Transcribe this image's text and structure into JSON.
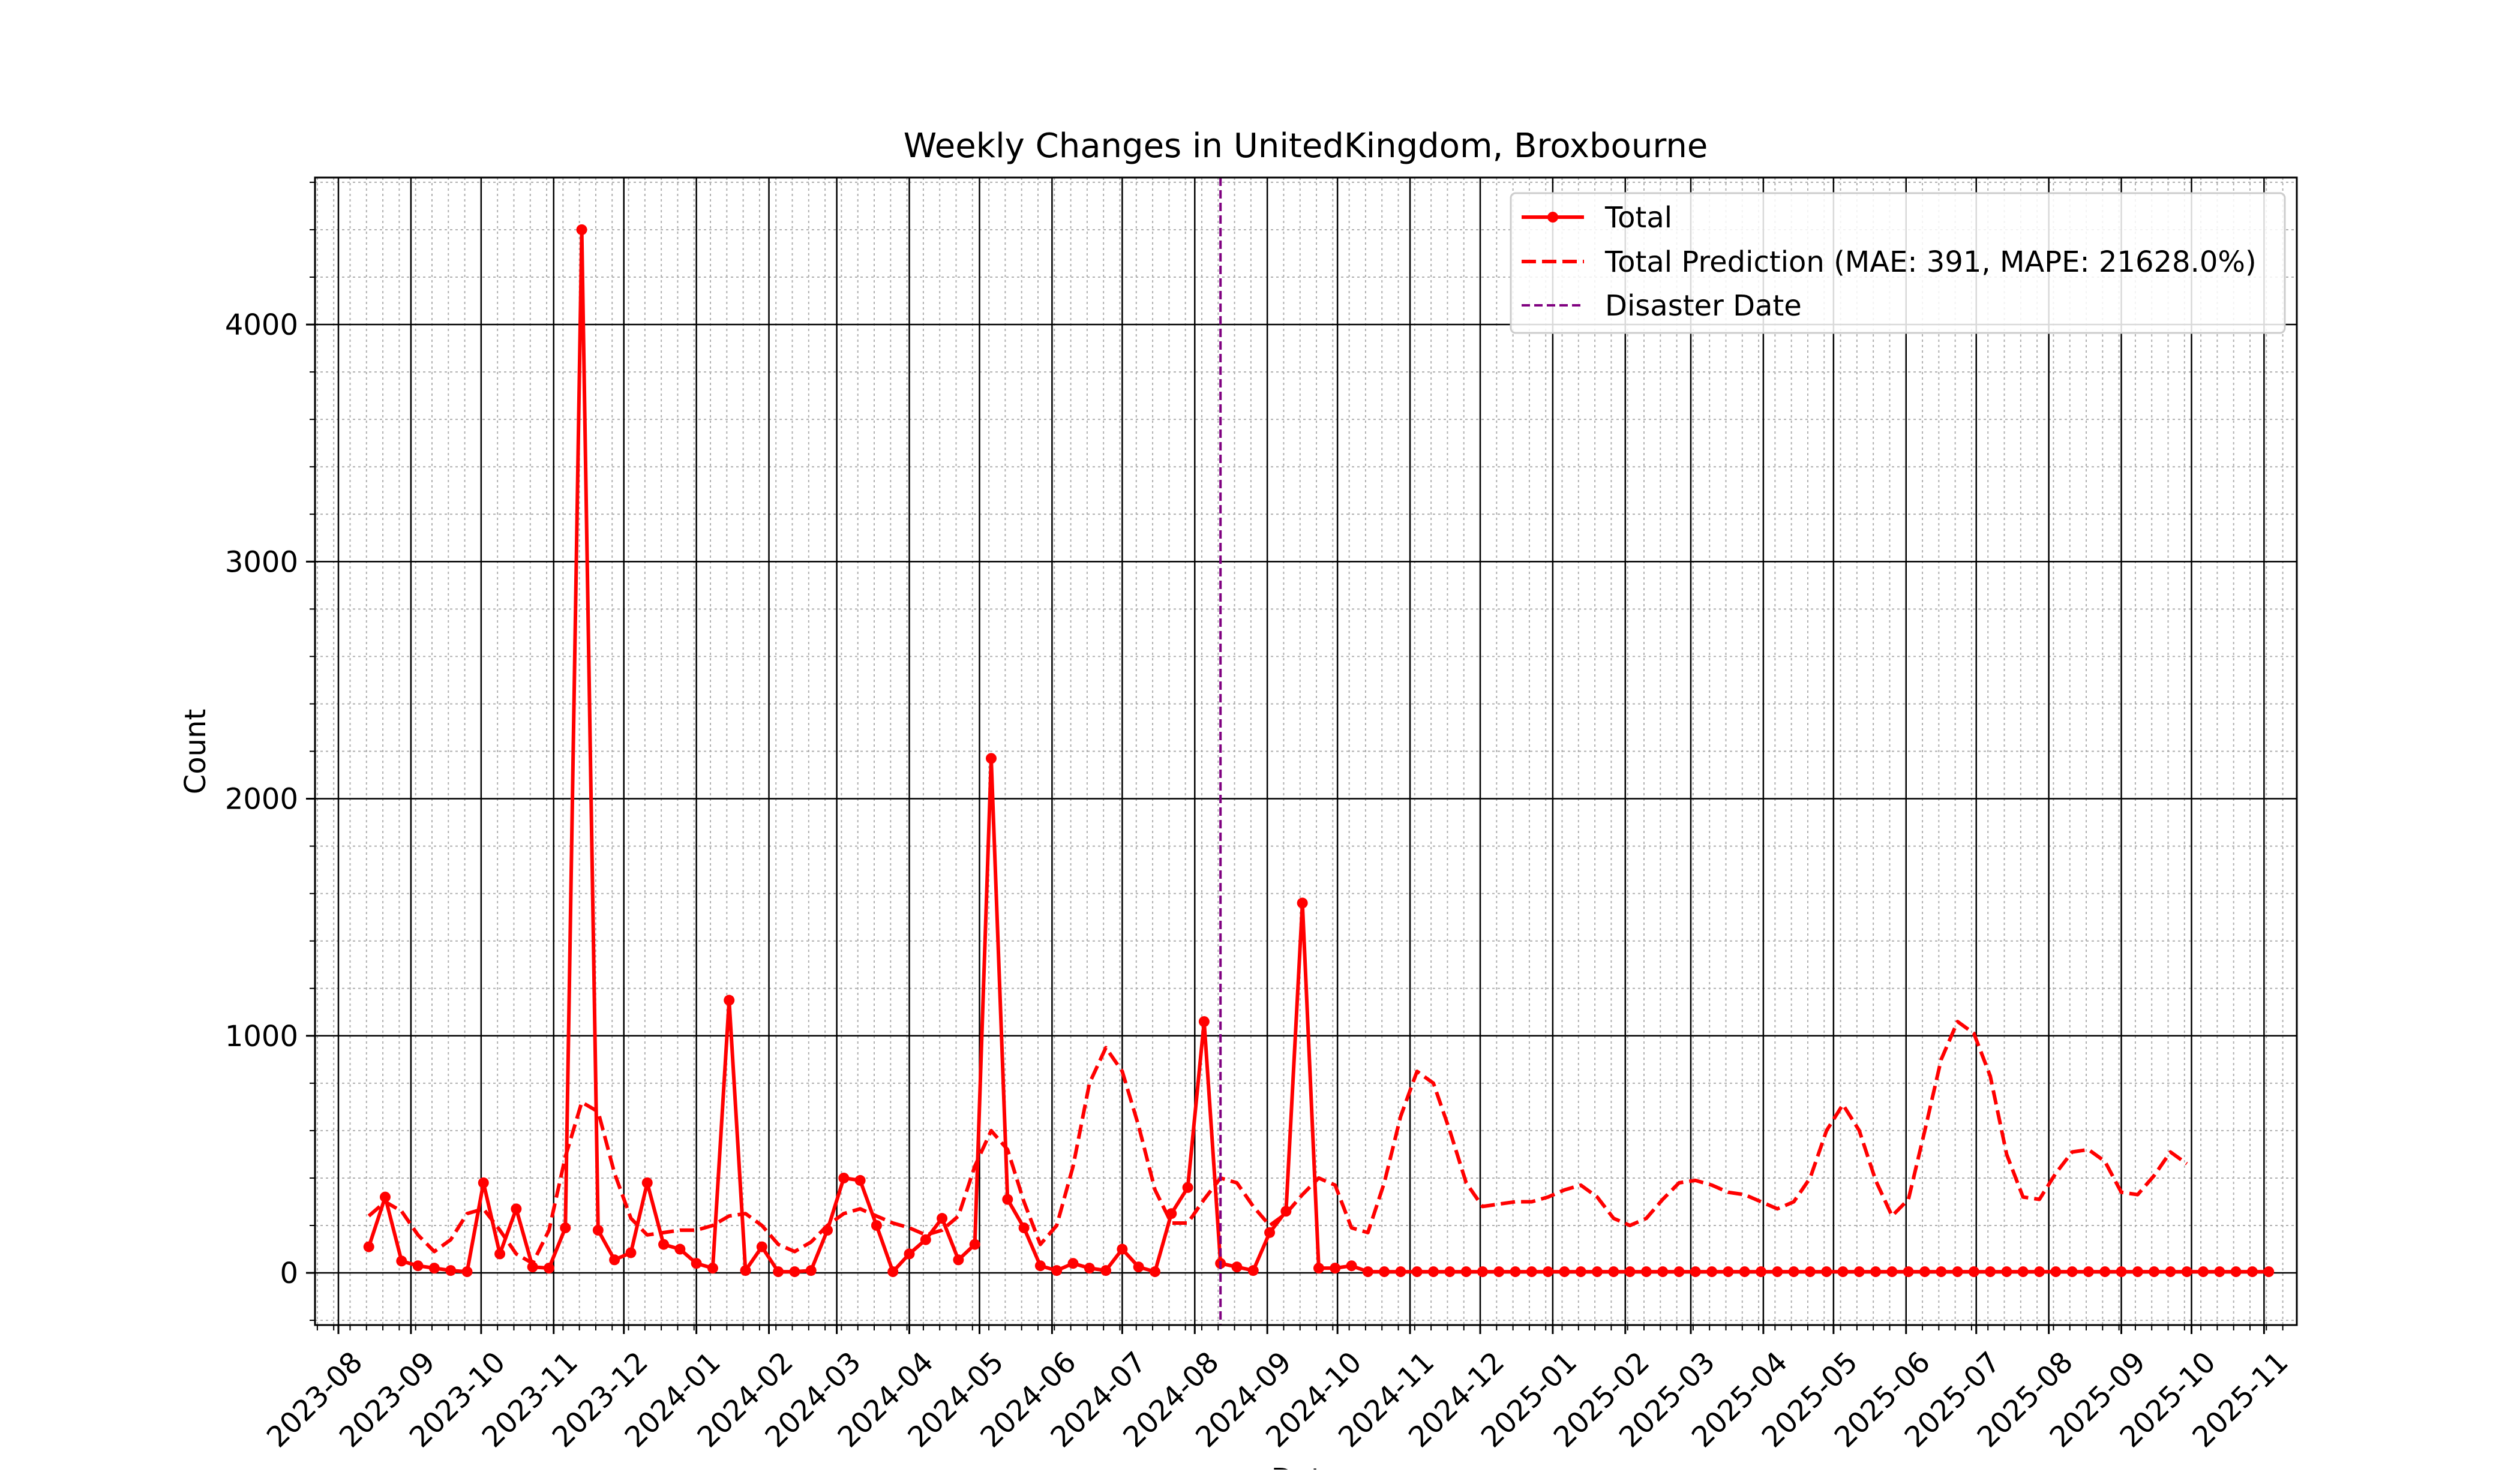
{
  "chart_data": {
    "type": "line",
    "title": "Weekly Changes in UnitedKingdom, Broxbourne",
    "xlabel": "Date",
    "ylabel": "Count",
    "x_axis_kind": "date",
    "xlim": [
      "2023-07-22",
      "2025-11-15"
    ],
    "ylim": [
      -220,
      4620
    ],
    "x_ticks": [
      "2023-08",
      "2023-09",
      "2023-10",
      "2023-11",
      "2023-12",
      "2024-01",
      "2024-02",
      "2024-03",
      "2024-04",
      "2024-05",
      "2024-06",
      "2024-07",
      "2024-08",
      "2024-09",
      "2024-10",
      "2024-11",
      "2024-12",
      "2025-01",
      "2025-02",
      "2025-03",
      "2025-04",
      "2025-05",
      "2025-06",
      "2025-07",
      "2025-08",
      "2025-09",
      "2025-10",
      "2025-11"
    ],
    "y_ticks": [
      0,
      1000,
      2000,
      3000,
      4000
    ],
    "grid": true,
    "legend_position": "top-right",
    "disaster_date": "2024-08-12",
    "colors": {
      "total": "#ff0000",
      "prediction": "#ff0000",
      "disaster": "#800080",
      "grid_major": "#000000",
      "grid_minor": "#b0b0b0"
    },
    "series": [
      {
        "name": "Total",
        "style": "solid-line-with-markers",
        "start": "2023-08-14",
        "step_days": 7,
        "values": [
          110,
          320,
          50,
          30,
          20,
          10,
          5,
          380,
          80,
          270,
          25,
          20,
          190,
          4400,
          180,
          55,
          85,
          380,
          120,
          100,
          40,
          20,
          1150,
          10,
          110,
          5,
          5,
          10,
          180,
          400,
          390,
          200,
          5,
          80,
          140,
          230,
          55,
          120,
          2170,
          310,
          190,
          30,
          10,
          40,
          20,
          10,
          100,
          25,
          5,
          250,
          360,
          1060,
          40,
          25,
          10,
          170,
          260,
          1560,
          20,
          20,
          30,
          5,
          5,
          5,
          5,
          5,
          5,
          5,
          5,
          5,
          5,
          5,
          5,
          5,
          5,
          5,
          5,
          5,
          5,
          5,
          5,
          5,
          5,
          5,
          5,
          5,
          5,
          5,
          5,
          5,
          5,
          5,
          5,
          5,
          5,
          5,
          5,
          5,
          5,
          5,
          5,
          5,
          5,
          5,
          5,
          5,
          5,
          5,
          5,
          5,
          5,
          5,
          5,
          5,
          5,
          5,
          5
        ]
      },
      {
        "name": "Total Prediction (MAE: 391, MAPE: 21628.0%)",
        "style": "dashed-line",
        "start": "2023-08-14",
        "step_days": 7,
        "values": [
          240,
          300,
          260,
          160,
          90,
          140,
          250,
          270,
          180,
          80,
          40,
          180,
          490,
          720,
          680,
          420,
          230,
          160,
          170,
          180,
          180,
          200,
          240,
          250,
          200,
          120,
          90,
          130,
          200,
          250,
          270,
          240,
          210,
          190,
          160,
          180,
          240,
          450,
          600,
          520,
          300,
          120,
          200,
          450,
          800,
          950,
          850,
          620,
          350,
          210,
          210,
          310,
          400,
          380,
          280,
          200,
          250,
          330,
          400,
          370,
          190,
          170,
          380,
          660,
          850,
          800,
          600,
          380,
          280,
          290,
          300,
          300,
          320,
          350,
          370,
          320,
          230,
          200,
          230,
          310,
          380,
          390,
          370,
          340,
          330,
          300,
          270,
          300,
          400,
          600,
          710,
          600,
          390,
          240,
          310,
          600,
          900,
          1060,
          1010,
          830,
          500,
          320,
          310,
          420,
          510,
          520,
          470,
          340,
          330,
          410,
          510,
          460
        ]
      }
    ],
    "legend": [
      "Total",
      "Total Prediction (MAE: 391, MAPE: 21628.0%)",
      "Disaster Date"
    ]
  }
}
